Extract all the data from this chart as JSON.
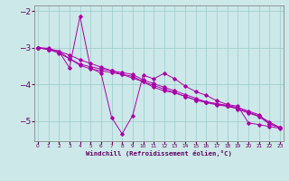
{
  "xlabel": "Windchill (Refroidissement éolien,°C)",
  "background_color": "#cce8e8",
  "grid_color": "#99cccc",
  "line_color": "#aa00aa",
  "x_ticks": [
    0,
    1,
    2,
    3,
    4,
    5,
    6,
    7,
    8,
    9,
    10,
    11,
    12,
    13,
    14,
    15,
    16,
    17,
    18,
    19,
    20,
    21,
    22,
    23
  ],
  "y_ticks": [
    -2,
    -3,
    -4,
    -5
  ],
  "xlim": [
    -0.3,
    23.3
  ],
  "ylim": [
    -5.55,
    -1.85
  ],
  "trend1": [
    -3.0,
    -3.02,
    -3.1,
    -3.3,
    -3.45,
    -3.52,
    -3.58,
    -3.63,
    -3.68,
    -3.73,
    -3.88,
    -3.98,
    -4.08,
    -4.18,
    -4.28,
    -4.38,
    -4.48,
    -4.53,
    -4.58,
    -4.63,
    -4.73,
    -4.83,
    -5.08,
    -5.18
  ],
  "trend2": [
    -3.0,
    -3.05,
    -3.15,
    -3.3,
    -3.48,
    -3.58,
    -3.63,
    -3.68,
    -3.73,
    -3.78,
    -3.93,
    -4.08,
    -4.18,
    -4.23,
    -4.33,
    -4.43,
    -4.48,
    -4.53,
    -4.58,
    -4.68,
    -4.78,
    -4.88,
    -5.08,
    -5.18
  ],
  "trend3": [
    -3.0,
    -3.05,
    -3.1,
    -3.2,
    -3.33,
    -3.43,
    -3.53,
    -3.63,
    -3.73,
    -3.83,
    -3.93,
    -4.03,
    -4.13,
    -4.23,
    -4.33,
    -4.43,
    -4.5,
    -4.56,
    -4.6,
    -4.66,
    -4.76,
    -4.86,
    -5.03,
    -5.18
  ],
  "zigzag": [
    -3.0,
    -3.05,
    -3.1,
    -3.55,
    -2.15,
    -3.55,
    -3.7,
    -4.9,
    -5.35,
    -4.85,
    -3.75,
    -3.85,
    -3.7,
    -3.85,
    -4.05,
    -4.2,
    -4.3,
    -4.45,
    -4.55,
    -4.6,
    -5.05,
    -5.1,
    -5.15,
    -5.2
  ]
}
